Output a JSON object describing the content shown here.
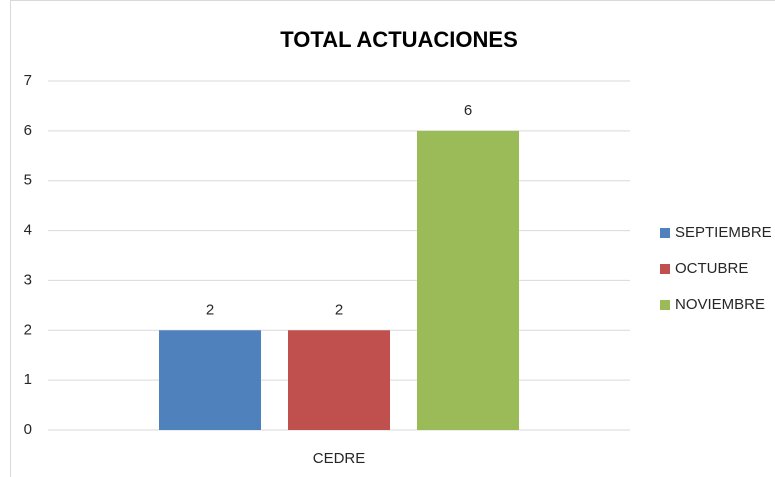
{
  "chart_data": {
    "type": "bar",
    "title": "TOTAL ACTUACIONES",
    "categories": [
      "CEDRE"
    ],
    "series": [
      {
        "name": "SEPTIEMBRE",
        "color": "#4f81bd",
        "values": [
          2
        ]
      },
      {
        "name": "OCTUBRE",
        "color": "#c0504d",
        "values": [
          2
        ]
      },
      {
        "name": "NOVIEMBRE",
        "color": "#9bbb59",
        "values": [
          6
        ]
      }
    ],
    "ylim": [
      0,
      7
    ],
    "yticks": [
      0,
      1,
      2,
      3,
      4,
      5,
      6,
      7
    ],
    "grid": true,
    "legend": "right"
  }
}
